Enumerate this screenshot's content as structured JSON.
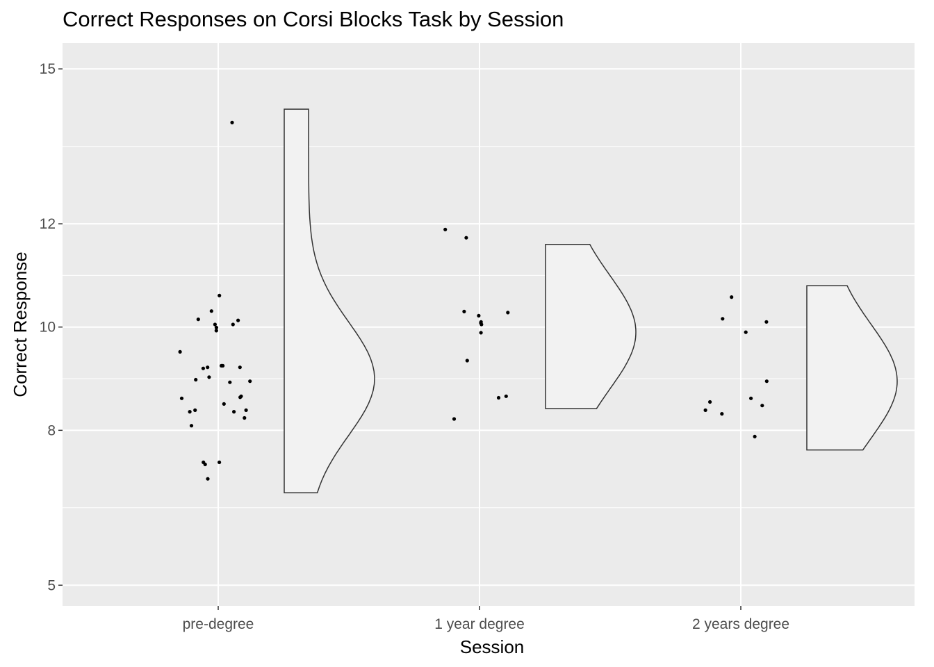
{
  "chart_data": {
    "type": "violin",
    "title": "Correct Responses on Corsi Blocks Task by Session",
    "xlabel": "Session",
    "ylabel": "Correct Response",
    "categories": [
      "pre-degree",
      "1 year degree",
      "2 years degree"
    ],
    "ylim": [
      4.6,
      15.5
    ],
    "yticks": [
      5,
      8,
      10,
      12,
      15
    ],
    "yticklabels": [
      "5",
      "8",
      "10",
      "12",
      "15"
    ],
    "grid": true,
    "legend": "none",
    "series": [
      {
        "category": "pre-degree",
        "points": [
          13.96,
          10.61,
          10.31,
          10.15,
          10.13,
          10.05,
          10.05,
          9.99,
          9.93,
          9.52,
          9.25,
          9.25,
          9.22,
          9.22,
          9.2,
          9.03,
          8.98,
          8.95,
          8.93,
          8.66,
          8.64,
          8.62,
          8.51,
          8.39,
          8.39,
          8.36,
          8.36,
          8.24,
          8.09,
          7.38,
          7.38,
          7.34,
          7.06
        ],
        "density_range": [
          6.79,
          14.22
        ],
        "density_peak": 9.0
      },
      {
        "category": "1 year degree",
        "points": [
          11.89,
          11.73,
          10.3,
          10.28,
          10.22,
          10.1,
          10.08,
          10.05,
          9.89,
          9.35,
          8.66,
          8.63,
          8.22
        ],
        "density_range": [
          8.42,
          11.6
        ],
        "density_peak": 9.9
      },
      {
        "category": "2 years degree",
        "points": [
          10.58,
          10.16,
          10.1,
          9.9,
          8.95,
          8.62,
          8.55,
          8.48,
          8.39,
          8.32,
          7.88
        ],
        "density_range": [
          7.62,
          10.8
        ],
        "density_peak": 8.95
      }
    ]
  }
}
